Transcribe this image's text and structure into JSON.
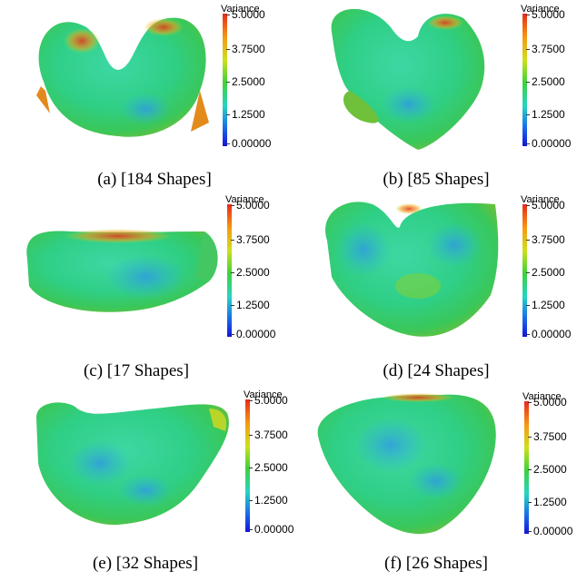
{
  "colorbar": {
    "title": "Variance",
    "ticks": [
      "5.0000",
      "3.7500",
      "2.5000",
      "1.2500",
      "0.00000"
    ],
    "range": [
      0,
      5
    ],
    "colors": [
      "#e8281c",
      "#f59a12",
      "#cfe01c",
      "#3fd23a",
      "#26d4c4",
      "#1a6de8",
      "#1414d8"
    ]
  },
  "panels": [
    {
      "caption": "(a) [184 Shapes]"
    },
    {
      "caption": "(b) [85 Shapes]"
    },
    {
      "caption": "(c) [17 Shapes]"
    },
    {
      "caption": "(d) [24 Shapes]"
    },
    {
      "caption": "(e) [32 Shapes]"
    },
    {
      "caption": "(f) [26 Shapes]"
    }
  ]
}
